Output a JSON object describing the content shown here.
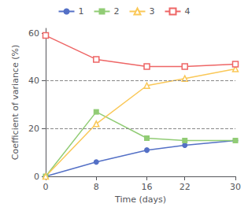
{
  "chart_data": {
    "type": "line",
    "x": [
      0,
      8,
      16,
      22,
      30
    ],
    "series": [
      {
        "name": "1",
        "color": "#5470c6",
        "marker": "circle",
        "values": [
          0,
          6,
          11,
          13,
          15
        ]
      },
      {
        "name": "2",
        "color": "#91cc75",
        "marker": "square",
        "values": [
          0,
          27,
          16,
          15,
          15
        ]
      },
      {
        "name": "3",
        "color": "#fac858",
        "marker": "open-triangle",
        "values": [
          0,
          22,
          38,
          41,
          45
        ]
      },
      {
        "name": "4",
        "color": "#ee6666",
        "marker": "open-square",
        "values": [
          59,
          49,
          46,
          46,
          47
        ]
      }
    ],
    "x_label": "Time (days)",
    "y_label": "Coefficient of variance (%)",
    "xlim": [
      0,
      30
    ],
    "xticks": [
      0,
      8,
      16,
      22,
      30
    ],
    "ylim": [
      0,
      62
    ],
    "yticks": [
      0,
      20,
      40,
      60
    ],
    "hlines": [
      20,
      40
    ],
    "grid": false,
    "legend": "top"
  }
}
